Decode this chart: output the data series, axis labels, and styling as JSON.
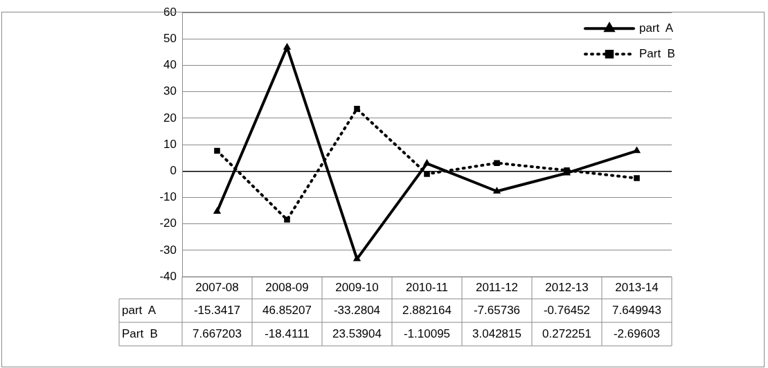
{
  "chart_data": {
    "type": "line",
    "categories": [
      "2007-08",
      "2008-09",
      "2009-10",
      "2010-11",
      "2011-12",
      "2012-13",
      "2013-14"
    ],
    "series": [
      {
        "name": "part  A",
        "color": "#000000",
        "marker": "triangle",
        "line_style": "solid",
        "values": [
          -15.3417,
          46.85207,
          -33.2804,
          2.882164,
          -7.65736,
          -0.76452,
          7.649943
        ]
      },
      {
        "name": "Part  B",
        "color": "#000000",
        "marker": "square",
        "line_style": "dotted",
        "values": [
          7.667203,
          -18.4111,
          23.53904,
          -1.10095,
          3.042815,
          0.272251,
          -2.69603
        ]
      }
    ],
    "ylim": [
      -40,
      60
    ],
    "yticks": [
      -40,
      -30,
      -20,
      -10,
      0,
      10,
      20,
      30,
      40,
      50,
      60
    ],
    "grid": "y",
    "legend": "top right",
    "data_labels": true
  }
}
